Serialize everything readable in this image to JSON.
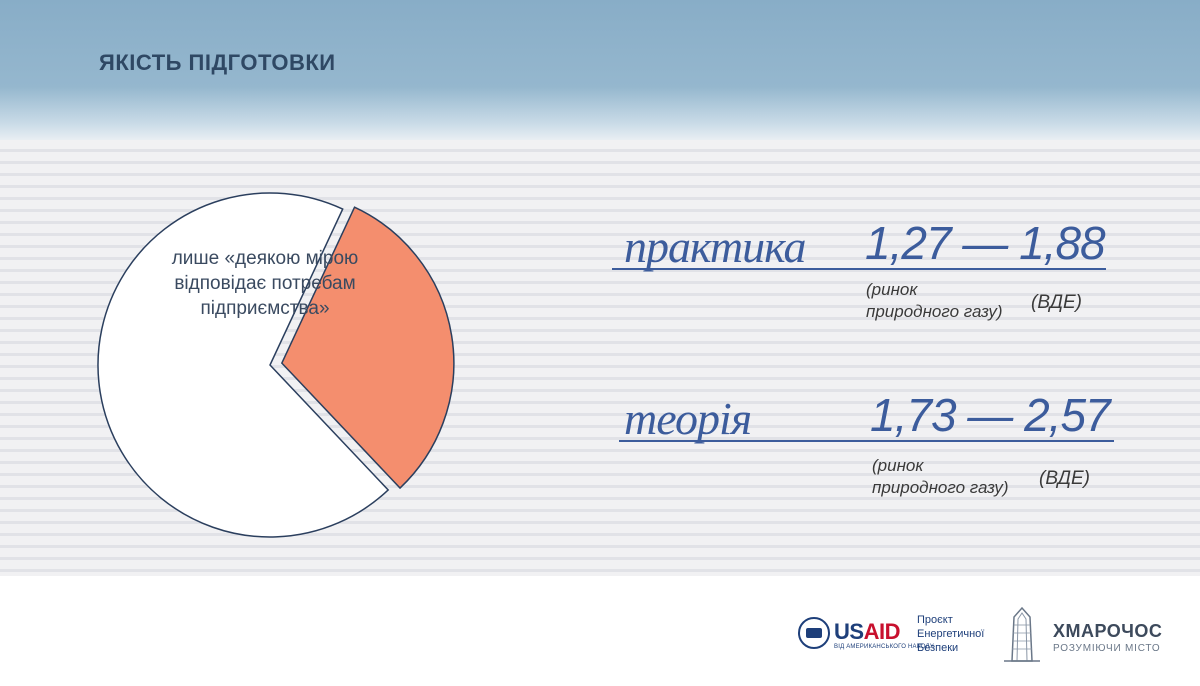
{
  "slide": {
    "title": "ЯКІСТЬ ПІДГОТОВКИ"
  },
  "pie": {
    "label": "лише «деякою мірою відповідає потребам підприємства»",
    "colors": {
      "main": "#ffffff",
      "highlight": "#f48e6e",
      "stroke": "#2b3f5e"
    },
    "slices": [
      {
        "name": "main",
        "fraction": 0.69
      },
      {
        "name": "highlight",
        "fraction": 0.31
      }
    ]
  },
  "rows": [
    {
      "label": "практика",
      "value": "1,27 — 1,88",
      "note_left": "(ринок природного газу)",
      "note_right": "(ВДЕ)"
    },
    {
      "label": "теорія",
      "value": "1,73 — 2,57",
      "note_left": "(ринок природного газу)",
      "note_right": "(ВДЕ)"
    }
  ],
  "footer": {
    "usaid_us": "US",
    "usaid_aid": "AID",
    "usaid_sub": "ВІД АМЕРИКАНСЬКОГО НАРОДУ",
    "project_line1": "Проєкт",
    "project_line2": "Енергетичної",
    "project_line3": "Безпеки",
    "brand_name": "ХМАРОЧОС",
    "brand_sub": "РОЗУМІЮЧИ МІСТО"
  },
  "colors": {
    "accent": "#3c5c9c",
    "title": "#2f4864"
  }
}
